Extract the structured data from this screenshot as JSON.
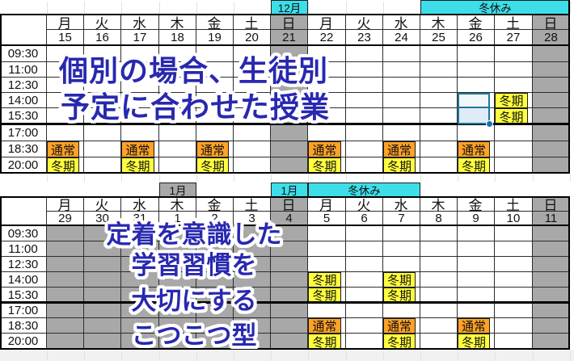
{
  "palette": {
    "orange": "#FFA226",
    "yellow": "#FFFF3E",
    "cyan": "#3EDEE8",
    "gray": "#A8A8A8",
    "selection_fill_active": "#F2F7FC",
    "selection_fill": "#DFEBF7",
    "selection_border": "#1F7697",
    "fill_handle": "#1B6FB5",
    "overlay_blue": "#2828B0"
  },
  "cell_labels": {
    "normal": "通常",
    "winter": "冬期"
  },
  "times": [
    "09:30",
    "11:00",
    "12:30",
    "14:00",
    "15:30",
    "17:00",
    "18:30",
    "20:00"
  ],
  "overlay": {
    "top_lines": [
      "個別の場合、生徒別",
      "予定に合わせた授業"
    ],
    "bottom_lines": [
      "定着を意識した",
      "学習習慣を",
      "大切にする",
      "こつこつ型"
    ]
  },
  "tables": [
    {
      "name": "december",
      "label_cells": [
        {
          "col": 6,
          "text": "12月",
          "variant": "cyan"
        }
      ],
      "band": {
        "text": "冬休み",
        "start": 10,
        "span": 4
      },
      "days": [
        "月",
        "火",
        "水",
        "木",
        "金",
        "土",
        "日",
        "月",
        "火",
        "水",
        "木",
        "金",
        "土",
        "日"
      ],
      "dates": [
        "15",
        "16",
        "17",
        "18",
        "19",
        "20",
        "21",
        "22",
        "23",
        "24",
        "25",
        "26",
        "27",
        "28"
      ],
      "gray_header_cols": [
        6,
        13
      ],
      "gray_body_cols": [
        6,
        13
      ],
      "marks": [
        {
          "r": 3,
          "c": 12,
          "type": "winter"
        },
        {
          "r": 4,
          "c": 12,
          "type": "winter"
        },
        {
          "r": 6,
          "c": 0,
          "type": "normal"
        },
        {
          "r": 6,
          "c": 2,
          "type": "normal"
        },
        {
          "r": 6,
          "c": 4,
          "type": "normal"
        },
        {
          "r": 6,
          "c": 7,
          "type": "normal"
        },
        {
          "r": 6,
          "c": 9,
          "type": "normal"
        },
        {
          "r": 6,
          "c": 11,
          "type": "normal"
        },
        {
          "r": 7,
          "c": 0,
          "type": "winter"
        },
        {
          "r": 7,
          "c": 2,
          "type": "winter"
        },
        {
          "r": 7,
          "c": 4,
          "type": "winter"
        },
        {
          "r": 7,
          "c": 7,
          "type": "winter"
        },
        {
          "r": 7,
          "c": 9,
          "type": "winter"
        },
        {
          "r": 7,
          "c": 11,
          "type": "winter"
        }
      ],
      "selection": {
        "col": 11,
        "rows": [
          3,
          4
        ]
      }
    },
    {
      "name": "january",
      "label_cells": [
        {
          "col": 3,
          "text": "1月",
          "variant": "gray"
        },
        {
          "col": 6,
          "text": "1月",
          "variant": "cyan"
        }
      ],
      "band": {
        "text": "冬休み",
        "start": 7,
        "span": 3
      },
      "days": [
        "月",
        "火",
        "水",
        "木",
        "金",
        "土",
        "日",
        "月",
        "火",
        "水",
        "木",
        "金",
        "土",
        "日"
      ],
      "dates": [
        "29",
        "30",
        "31",
        "1",
        "2",
        "3",
        "4",
        "5",
        "6",
        "7",
        "8",
        "9",
        "10",
        "11"
      ],
      "gray_header_cols": [
        6,
        13
      ],
      "gray_body_cols": [
        0,
        1,
        2,
        3,
        4,
        5,
        6,
        13
      ],
      "marks": [
        {
          "r": 3,
          "c": 7,
          "type": "winter"
        },
        {
          "r": 3,
          "c": 9,
          "type": "winter"
        },
        {
          "r": 4,
          "c": 7,
          "type": "winter"
        },
        {
          "r": 4,
          "c": 9,
          "type": "winter"
        },
        {
          "r": 6,
          "c": 7,
          "type": "normal"
        },
        {
          "r": 6,
          "c": 9,
          "type": "normal"
        },
        {
          "r": 6,
          "c": 11,
          "type": "normal"
        },
        {
          "r": 7,
          "c": 7,
          "type": "winter"
        },
        {
          "r": 7,
          "c": 9,
          "type": "winter"
        },
        {
          "r": 7,
          "c": 11,
          "type": "winter"
        }
      ],
      "selection": null
    }
  ]
}
